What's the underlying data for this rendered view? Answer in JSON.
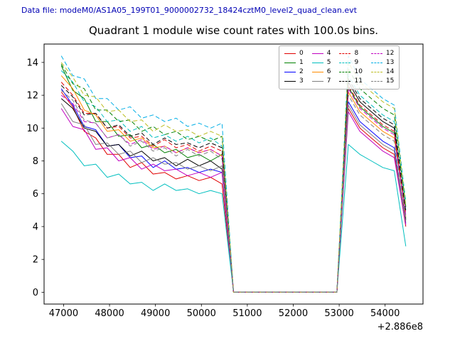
{
  "header": {
    "label": "Data file: modeM0/AS1A05_199T01_9000002732_18424cztM0_level2_quad_clean.evt",
    "color": "#0000b4"
  },
  "chart_data": {
    "type": "line",
    "title": "Quadrant 1 module wise count rates with 100.0s bins.",
    "xlabel": "",
    "ylabel": "",
    "x_offset_label": "+2.886e8",
    "xlim": [
      46575,
      54825
    ],
    "ylim": [
      -0.72,
      15.12
    ],
    "xticks": [
      47000,
      48000,
      49000,
      50000,
      51000,
      52000,
      53000,
      54000
    ],
    "yticks": [
      0,
      2,
      4,
      6,
      8,
      10,
      12,
      14
    ],
    "grid": false,
    "legend_position": "upper right",
    "x": [
      46950,
      47200,
      47450,
      47700,
      47950,
      48200,
      48450,
      48700,
      48950,
      49200,
      49450,
      49700,
      49950,
      50200,
      50450,
      50700,
      50950,
      51200,
      51450,
      51700,
      51950,
      52200,
      52450,
      52700,
      52950,
      53200,
      53450,
      53700,
      53950,
      54200,
      54450
    ],
    "series": [
      {
        "name": "0",
        "color": "#e00000",
        "dash": "solid",
        "values": [
          12.2,
          11.3,
          9.8,
          9.4,
          8.4,
          8.4,
          7.6,
          7.9,
          7.2,
          7.3,
          6.9,
          7.1,
          6.8,
          7.0,
          6.6,
          0,
          0,
          0,
          0,
          0,
          0,
          0,
          0,
          0,
          0,
          11.2,
          10.0,
          9.4,
          8.8,
          8.4,
          4.0
        ]
      },
      {
        "name": "1",
        "color": "#008000",
        "dash": "solid",
        "values": [
          13.8,
          12.3,
          11.8,
          10.4,
          10.4,
          9.5,
          9.6,
          8.8,
          9.0,
          8.5,
          8.7,
          8.2,
          8.4,
          8.0,
          8.4,
          0,
          0,
          0,
          0,
          0,
          0,
          0,
          0,
          0,
          0,
          12.5,
          11.3,
          10.7,
          10.1,
          9.7,
          4.5
        ]
      },
      {
        "name": "2",
        "color": "#0000ff",
        "dash": "solid",
        "values": [
          12.4,
          11.4,
          10.1,
          9.9,
          8.9,
          9.0,
          8.2,
          8.3,
          7.6,
          8.0,
          7.5,
          7.6,
          7.3,
          7.5,
          7.3,
          0,
          0,
          0,
          0,
          0,
          0,
          0,
          0,
          0,
          0,
          11.6,
          10.4,
          9.8,
          9.2,
          8.8,
          4.2
        ]
      },
      {
        "name": "3",
        "color": "#000000",
        "dash": "solid",
        "values": [
          11.8,
          11.2,
          10.0,
          9.8,
          8.9,
          9.0,
          8.3,
          8.6,
          8.0,
          8.2,
          7.7,
          8.1,
          7.7,
          8.0,
          7.5,
          0,
          0,
          0,
          0,
          0,
          0,
          0,
          0,
          0,
          0,
          12.8,
          11.6,
          11.0,
          10.4,
          10.0,
          4.4
        ]
      },
      {
        "name": "4",
        "color": "#c000c0",
        "dash": "solid",
        "values": [
          11.2,
          10.1,
          9.9,
          8.7,
          8.8,
          8.0,
          8.2,
          7.5,
          7.8,
          7.4,
          7.5,
          7.1,
          7.3,
          7.0,
          7.3,
          0,
          0,
          0,
          0,
          0,
          0,
          0,
          0,
          0,
          0,
          11.0,
          9.8,
          9.2,
          8.6,
          8.2,
          4.1
        ]
      },
      {
        "name": "5",
        "color": "#00bfbf",
        "dash": "solid",
        "values": [
          9.2,
          8.6,
          7.7,
          7.8,
          7.0,
          7.2,
          6.6,
          6.7,
          6.2,
          6.6,
          6.2,
          6.3,
          6.0,
          6.2,
          6.0,
          0,
          0,
          0,
          0,
          0,
          0,
          0,
          0,
          0,
          0,
          9.0,
          8.4,
          8.0,
          7.6,
          7.4,
          2.8
        ]
      },
      {
        "name": "6",
        "color": "#ff8c00",
        "dash": "solid",
        "values": [
          13.2,
          12.4,
          11.1,
          10.8,
          9.8,
          9.9,
          9.2,
          9.4,
          8.8,
          8.9,
          8.5,
          8.8,
          8.5,
          8.7,
          8.3,
          0,
          0,
          0,
          0,
          0,
          0,
          0,
          0,
          0,
          0,
          12.2,
          11.0,
          10.4,
          9.8,
          9.4,
          4.6
        ]
      },
      {
        "name": "7",
        "color": "#7f7f7f",
        "dash": "solid",
        "values": [
          11.5,
          10.4,
          10.2,
          9.0,
          9.1,
          8.4,
          8.6,
          7.9,
          8.2,
          7.8,
          7.9,
          7.5,
          7.7,
          7.4,
          7.7,
          0,
          0,
          0,
          0,
          0,
          0,
          0,
          0,
          0,
          0,
          11.4,
          10.2,
          9.6,
          9.0,
          8.6,
          4.3
        ]
      },
      {
        "name": "8",
        "color": "#e00000",
        "dash": "dashed",
        "values": [
          12.8,
          12.0,
          10.9,
          10.9,
          10.0,
          10.1,
          9.4,
          9.5,
          8.9,
          9.3,
          8.8,
          9.0,
          8.6,
          8.9,
          8.6,
          0,
          0,
          0,
          0,
          0,
          0,
          0,
          0,
          0,
          0,
          12.6,
          11.4,
          10.8,
          10.2,
          9.8,
          4.8
        ]
      },
      {
        "name": "9",
        "color": "#00bfbf",
        "dash": "dashed",
        "values": [
          13.5,
          12.8,
          11.6,
          11.3,
          10.4,
          10.5,
          9.8,
          10.1,
          9.4,
          9.6,
          9.2,
          9.5,
          9.1,
          9.4,
          8.9,
          0,
          0,
          0,
          0,
          0,
          0,
          0,
          0,
          0,
          0,
          13.2,
          12.0,
          11.4,
          10.8,
          10.4,
          5.0
        ]
      },
      {
        "name": "10",
        "color": "#008000",
        "dash": "dashed",
        "values": [
          13.9,
          12.7,
          12.4,
          11.1,
          11.1,
          10.4,
          10.5,
          9.8,
          10.1,
          9.6,
          9.8,
          9.3,
          9.5,
          9.2,
          9.5,
          0,
          0,
          0,
          0,
          0,
          0,
          0,
          0,
          0,
          0,
          13.6,
          12.4,
          11.8,
          11.2,
          10.8,
          5.2
        ]
      },
      {
        "name": "11",
        "color": "#000000",
        "dash": "dashed",
        "values": [
          12.6,
          11.9,
          10.8,
          10.9,
          10.0,
          10.2,
          9.5,
          9.7,
          9.0,
          9.4,
          9.0,
          9.1,
          8.8,
          9.1,
          8.8,
          0,
          0,
          0,
          0,
          0,
          0,
          0,
          0,
          0,
          0,
          13.0,
          11.8,
          11.2,
          10.6,
          10.2,
          4.9
        ]
      },
      {
        "name": "12",
        "color": "#c000c0",
        "dash": "dashed",
        "values": [
          12.0,
          11.5,
          10.4,
          10.3,
          9.4,
          9.6,
          9.0,
          9.3,
          8.7,
          8.9,
          8.5,
          8.8,
          8.5,
          8.7,
          8.3,
          0,
          0,
          0,
          0,
          0,
          0,
          0,
          0,
          0,
          0,
          12.4,
          11.2,
          10.6,
          10.0,
          9.6,
          4.7
        ]
      },
      {
        "name": "13",
        "color": "#00aee6",
        "dash": "dashed",
        "values": [
          14.4,
          13.2,
          13.0,
          11.8,
          11.8,
          11.1,
          11.3,
          10.6,
          10.8,
          10.4,
          10.6,
          10.1,
          10.3,
          10.0,
          10.3,
          0,
          0,
          0,
          0,
          0,
          0,
          0,
          0,
          0,
          0,
          14.4,
          13.0,
          12.4,
          11.8,
          11.4,
          5.5
        ]
      },
      {
        "name": "14",
        "color": "#bcbd22",
        "dash": "dashed",
        "values": [
          14.0,
          13.1,
          12.0,
          11.9,
          11.0,
          11.1,
          10.4,
          10.5,
          9.8,
          10.2,
          9.8,
          9.9,
          9.5,
          9.8,
          9.5,
          0,
          0,
          0,
          0,
          0,
          0,
          0,
          0,
          0,
          0,
          14.0,
          12.8,
          12.2,
          11.6,
          11.2,
          5.3
        ]
      },
      {
        "name": "15",
        "color": "#7f7f7f",
        "dash": "dashed",
        "values": [
          12.3,
          11.7,
          10.5,
          10.3,
          9.4,
          9.6,
          8.9,
          9.2,
          8.6,
          8.8,
          8.3,
          8.7,
          8.3,
          8.6,
          8.1,
          0,
          0,
          0,
          0,
          0,
          0,
          0,
          0,
          0,
          0,
          12.0,
          10.8,
          10.2,
          9.6,
          9.2,
          4.5
        ]
      }
    ]
  }
}
